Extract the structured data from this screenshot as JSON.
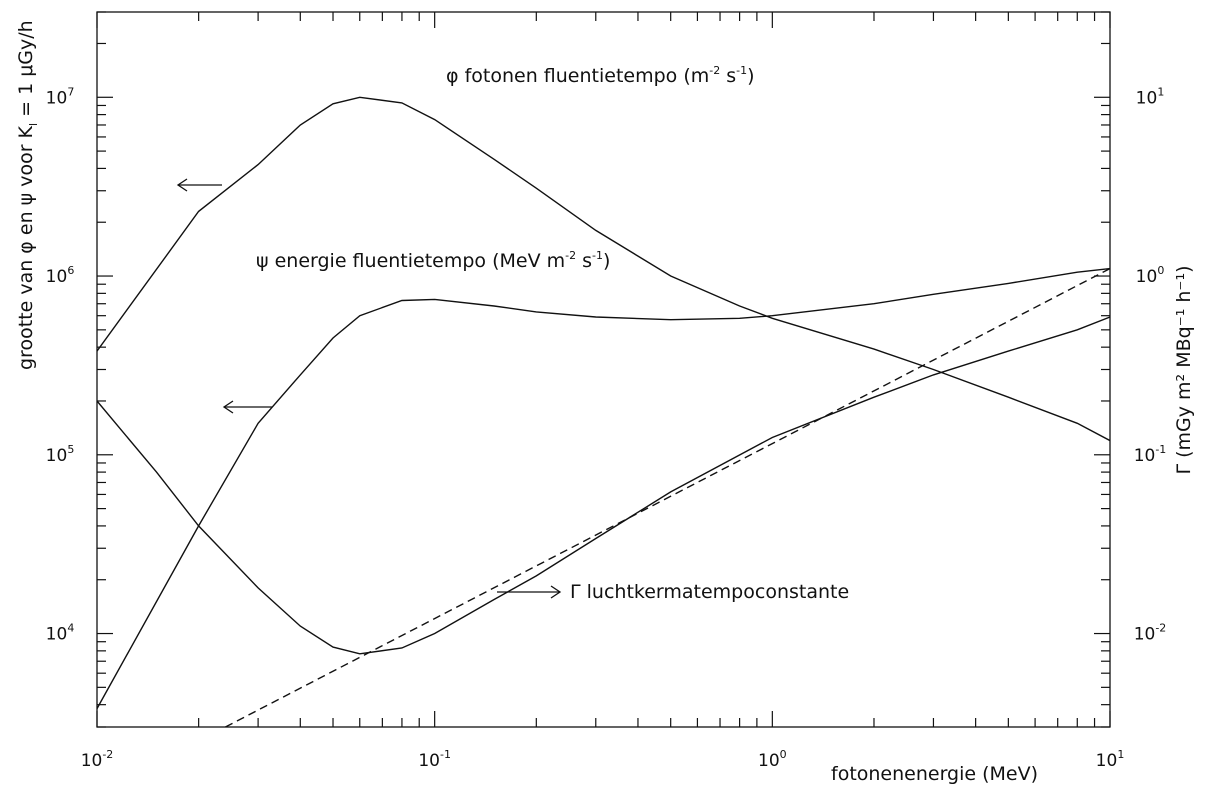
{
  "chart_data": {
    "type": "line",
    "title": "",
    "xlabel": "fotonenenergie (MeV)",
    "ylabel_left": "grootte van φ en ψ voor K",
    "ylabel_left_sub": "l",
    "ylabel_left_tail": " = 1 μGy/h",
    "ylabel_right": "Γ (mGy m² MBq⁻¹ h⁻¹)",
    "x_scale": "log",
    "y_left_scale": "log",
    "y_right_scale": "log",
    "xlim": [
      0.01,
      10
    ],
    "ylim_left": [
      3000,
      30000000
    ],
    "ylim_right": [
      0.003,
      30
    ],
    "grid": false,
    "x_tick_labels": [
      {
        "value": 0.01,
        "base": "10",
        "exp": "-2"
      },
      {
        "value": 0.1,
        "base": "10",
        "exp": "-1"
      },
      {
        "value": 1,
        "base": "10",
        "exp": "0"
      },
      {
        "value": 10,
        "base": "10",
        "exp": "1"
      }
    ],
    "y_left_tick_labels": [
      {
        "value": 10000,
        "base": "10",
        "exp": "4"
      },
      {
        "value": 100000,
        "base": "10",
        "exp": "5"
      },
      {
        "value": 1000000,
        "base": "10",
        "exp": "6"
      },
      {
        "value": 10000000,
        "base": "10",
        "exp": "7"
      }
    ],
    "y_right_tick_labels": [
      {
        "value": 0.01,
        "base": "10",
        "exp": "-2"
      },
      {
        "value": 0.1,
        "base": "10",
        "exp": "-1"
      },
      {
        "value": 1,
        "base": "10",
        "exp": "0"
      },
      {
        "value": 10,
        "base": "10",
        "exp": "1"
      }
    ],
    "series": [
      {
        "key": "phi",
        "axis": "left",
        "style": "solid",
        "x": [
          0.01,
          0.02,
          0.03,
          0.04,
          0.05,
          0.06,
          0.08,
          0.1,
          0.15,
          0.2,
          0.3,
          0.5,
          0.8,
          1,
          2,
          3,
          5,
          8,
          10
        ],
        "y": [
          380000,
          2300000,
          4200000,
          7000000,
          9200000,
          10000000,
          9300000,
          7500000,
          4500000,
          3100000,
          1800000,
          1000000,
          680000,
          580000,
          390000,
          300000,
          210000,
          150000,
          120000
        ]
      },
      {
        "key": "psi",
        "axis": "left",
        "style": "solid",
        "x": [
          0.01,
          0.02,
          0.03,
          0.04,
          0.05,
          0.06,
          0.08,
          0.1,
          0.15,
          0.2,
          0.3,
          0.5,
          0.8,
          1,
          2,
          3,
          5,
          8,
          10
        ],
        "y": [
          3800,
          40000,
          150000,
          280000,
          450000,
          600000,
          730000,
          740000,
          680000,
          630000,
          590000,
          570000,
          580000,
          600000,
          700000,
          790000,
          910000,
          1050000,
          1100000
        ]
      },
      {
        "key": "gamma",
        "axis": "right",
        "style": "solid",
        "x": [
          0.01,
          0.015,
          0.02,
          0.03,
          0.04,
          0.05,
          0.06,
          0.08,
          0.1,
          0.15,
          0.2,
          0.3,
          0.5,
          1,
          2,
          3,
          5,
          8,
          10
        ],
        "y": [
          0.2,
          0.08,
          0.04,
          0.018,
          0.011,
          0.0084,
          0.0077,
          0.0083,
          0.01,
          0.0155,
          0.021,
          0.034,
          0.062,
          0.125,
          0.21,
          0.28,
          0.38,
          0.5,
          0.59
        ]
      },
      {
        "key": "gamma_approx",
        "axis": "right",
        "style": "dashed",
        "x": [
          0.024,
          10
        ],
        "y": [
          0.003,
          1.1
        ]
      }
    ],
    "annotations": [
      {
        "key": "phi",
        "symbol": "φ",
        "text": " fotonen fluentietempo (m",
        "exp1": "-2",
        "mid": " s",
        "exp2": "-1",
        "tail": ")"
      },
      {
        "key": "psi",
        "symbol": "ψ",
        "text": " energie fluentietempo (MeV m",
        "exp1": "-2",
        "mid": " s",
        "exp2": "-1",
        "tail": ")"
      },
      {
        "key": "gamma",
        "symbol": "Γ",
        "text": " luchtkermatempoconstante"
      }
    ]
  }
}
